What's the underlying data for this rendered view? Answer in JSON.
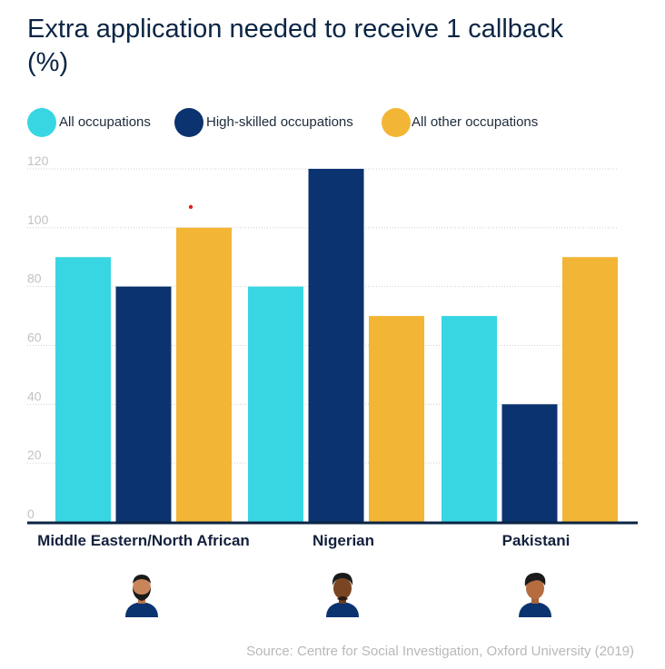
{
  "title": "Extra application needed to receive 1 callback (%)",
  "source": "Source: Centre for Social Investigation, Oxford University (2019)",
  "colors": {
    "all": "#38d6e3",
    "high": "#0b3370",
    "other": "#f2b535",
    "axis": "#0b2545",
    "grid": "#cfcfcf"
  },
  "chart_data": {
    "type": "bar",
    "categories": [
      "Middle Eastern/North African",
      "Nigerian",
      "Pakistani"
    ],
    "series": [
      {
        "name": "All occupations",
        "values": [
          90,
          80,
          70
        ]
      },
      {
        "name": "High-skilled occupations",
        "values": [
          80,
          120,
          40
        ]
      },
      {
        "name": "All other occupations",
        "values": [
          100,
          70,
          90
        ]
      }
    ],
    "yticks": [
      0,
      20,
      40,
      60,
      80,
      100,
      120
    ],
    "ylim": [
      0,
      120
    ],
    "grid": true,
    "legend_position": "top-left"
  },
  "icons": [
    "bearded-man-avatar-icon",
    "man-avatar-icon",
    "man-avatar-icon"
  ]
}
